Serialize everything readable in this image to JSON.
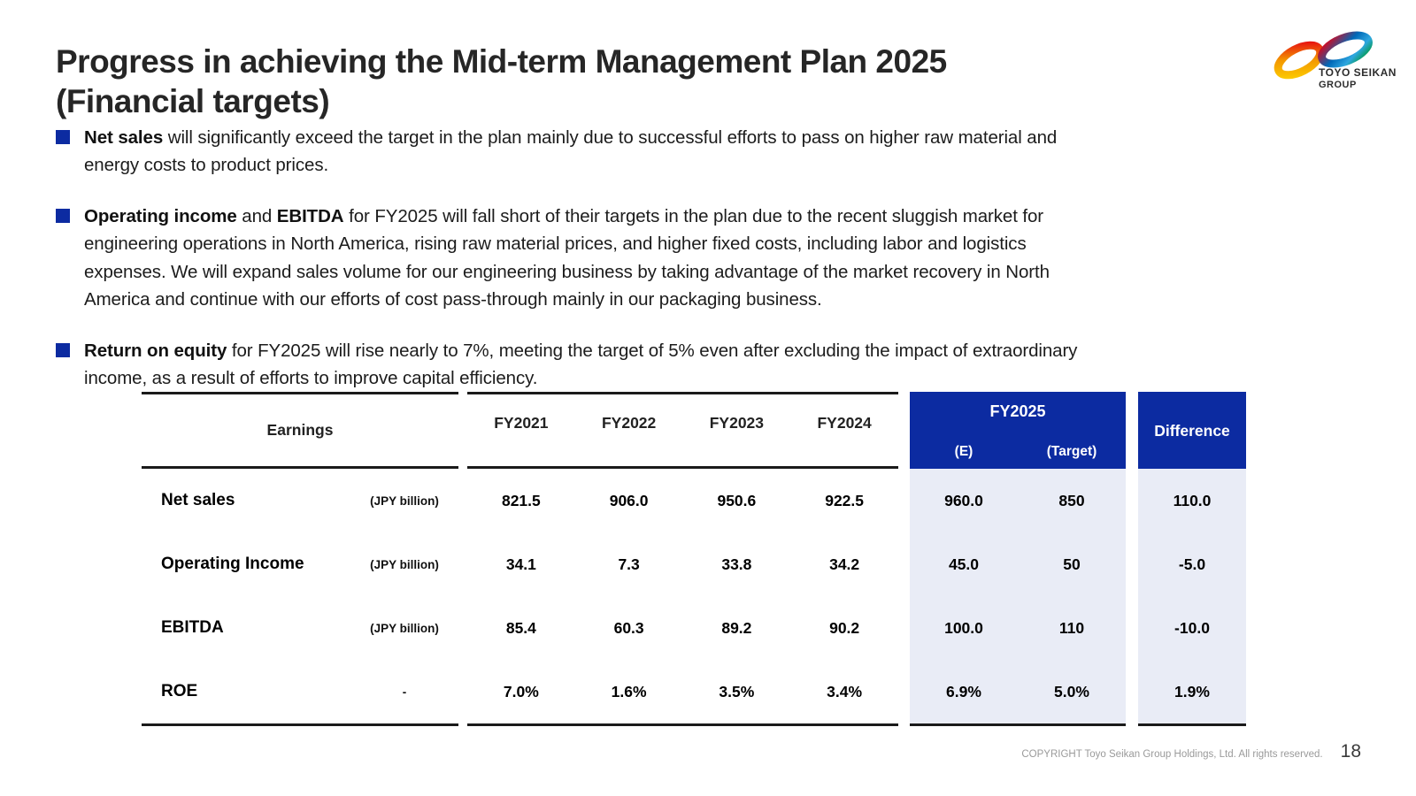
{
  "slide": {
    "title": "Progress in achieving the Mid-term Management Plan 2025\n(Financial targets)",
    "logo": {
      "line1": "TOYO SEIKAN",
      "line2": "GROUP"
    },
    "bullets": [
      {
        "segments": [
          {
            "text": "Net sales",
            "bold": true
          },
          {
            "text": " will significantly exceed the target in the plan mainly due to successful efforts to pass on higher raw material and\nenergy costs to product prices.",
            "bold": false
          }
        ]
      },
      {
        "segments": [
          {
            "text": "Operating income",
            "bold": true
          },
          {
            "text": " and ",
            "bold": false
          },
          {
            "text": "EBITDA",
            "bold": true
          },
          {
            "text": " for FY2025 will fall short of their targets in the plan due to the recent sluggish market for\nengineering operations in North America, rising raw material prices, and higher fixed costs, including labor and logistics\nexpenses. We will expand sales volume for our engineering business by taking advantage of the market recovery in North\nAmerica and continue with our efforts of cost pass-through mainly in our packaging business.",
            "bold": false
          }
        ]
      },
      {
        "segments": [
          {
            "text": "Return on equity",
            "bold": true
          },
          {
            "text": " for FY2025 will rise nearly to 7%, meeting the target of 5% even after excluding the impact of extraordinary\nincome, as a result of efforts to improve capital efficiency.",
            "bold": false
          }
        ]
      }
    ],
    "table": {
      "earnings_header": "Earnings",
      "years": [
        "FY2021",
        "FY2022",
        "FY2023",
        "FY2024"
      ],
      "fy2025_label": "FY2025",
      "fy2025_sublabels": [
        "(E)",
        "(Target)"
      ],
      "difference_label": "Difference",
      "rows": [
        {
          "label": "Net sales",
          "unit": "(JPY billion)",
          "values": [
            "821.5",
            "906.0",
            "950.6",
            "922.5"
          ],
          "fy2025": [
            "960.0",
            "850"
          ],
          "difference": "110.0"
        },
        {
          "label": "Operating Income",
          "unit": "(JPY billion)",
          "values": [
            "34.1",
            "7.3",
            "33.8",
            "34.2"
          ],
          "fy2025": [
            "45.0",
            "50"
          ],
          "difference": "-5.0"
        },
        {
          "label": "EBITDA",
          "unit": "(JPY billion)",
          "values": [
            "85.4",
            "60.3",
            "89.2",
            "90.2"
          ],
          "fy2025": [
            "100.0",
            "110"
          ],
          "difference": "-10.0"
        },
        {
          "label": "ROE",
          "unit": "-",
          "values": [
            "7.0%",
            "1.6%",
            "3.5%",
            "3.4%"
          ],
          "fy2025": [
            "6.9%",
            "5.0%"
          ],
          "difference": "1.9%"
        }
      ]
    },
    "footer": {
      "copyright": "COPYRIGHT Toyo Seikan Group Holdings, Ltd. All rights reserved.",
      "page": "18"
    },
    "colors": {
      "accent_blue": "#0c2ba1",
      "light_blue_bg": "#e9ecf6",
      "line_dark": "#1a1a1a"
    }
  }
}
